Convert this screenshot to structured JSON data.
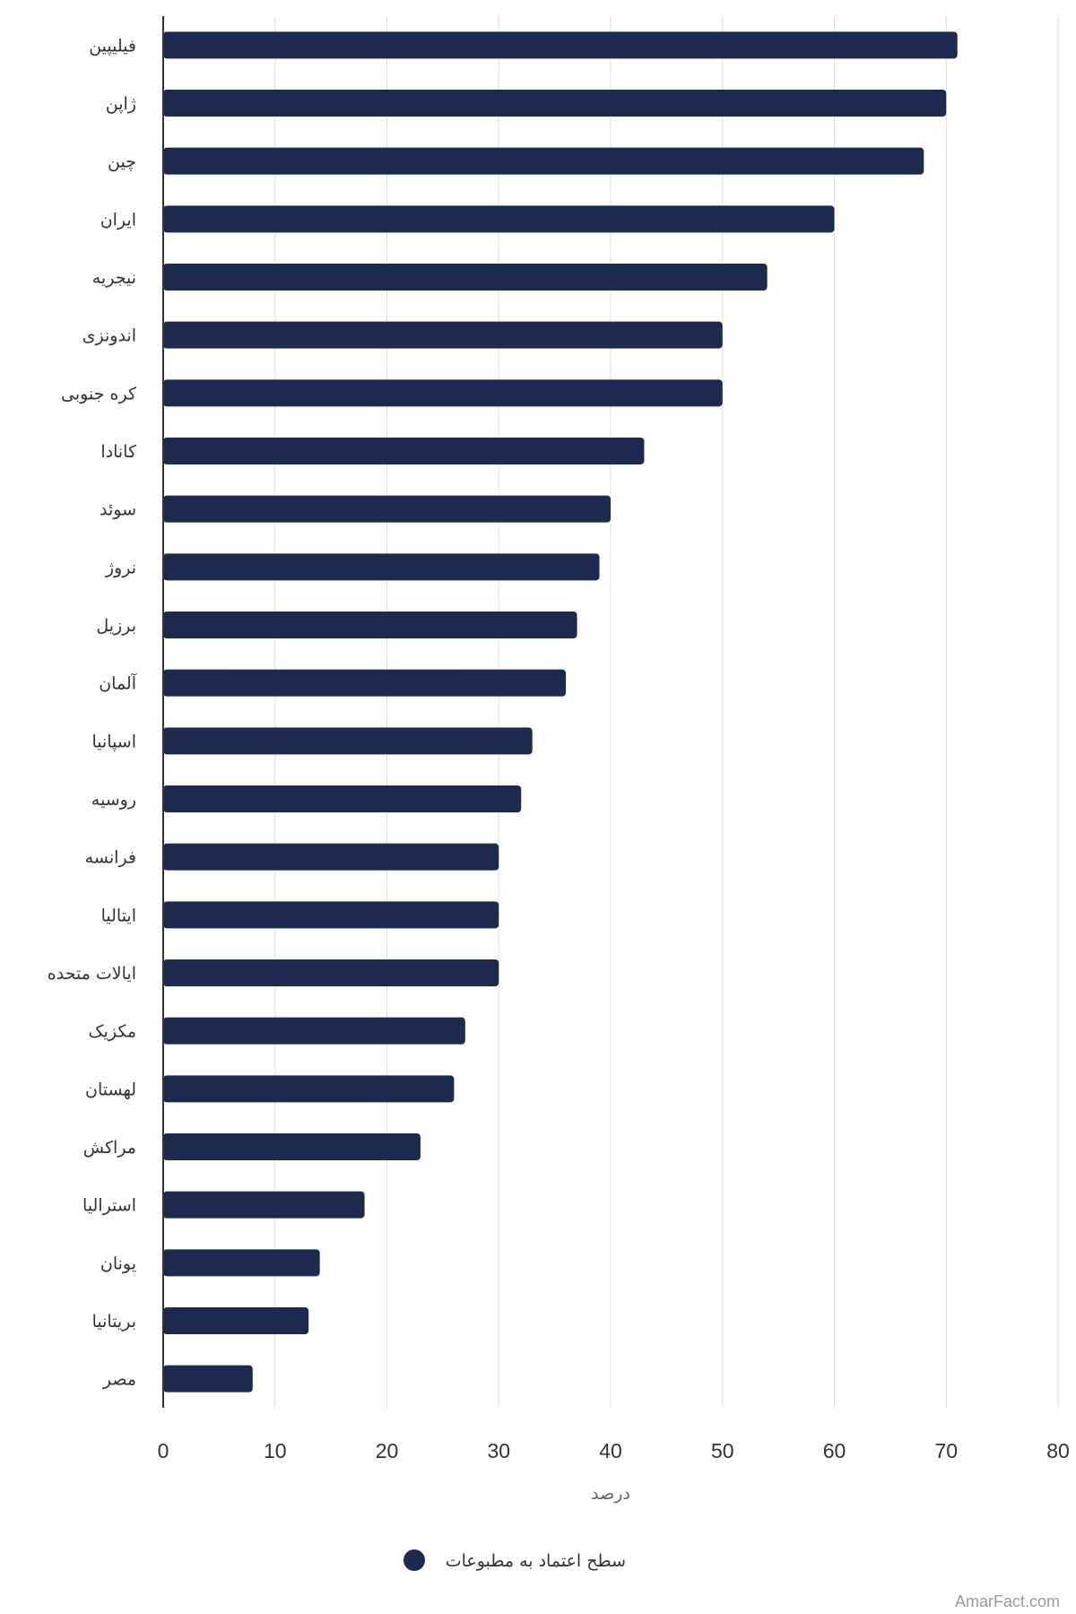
{
  "chart_data": {
    "type": "bar",
    "orientation": "horizontal",
    "categories": [
      "فیلیپین",
      "ژاپن",
      "چین",
      "ایران",
      "نیجریه",
      "اندونزی",
      "کره جنوبی",
      "کانادا",
      "سوئد",
      "نروژ",
      "برزیل",
      "آلمان",
      "اسپانیا",
      "روسیه",
      "فرانسه",
      "ایتالیا",
      "ایالات متحده",
      "مکزیک",
      "لهستان",
      "مراکش",
      "استرالیا",
      "یونان",
      "بریتانیا",
      "مصر"
    ],
    "series": [
      {
        "name": "سطح اعتماد به مطبوعات",
        "values": [
          71,
          70,
          68,
          60,
          54,
          50,
          50,
          43,
          40,
          39,
          37,
          36,
          33,
          32,
          30,
          30,
          30,
          27,
          26,
          23,
          18,
          14,
          13,
          8
        ]
      }
    ],
    "xlabel": "درصد",
    "xlim": [
      0,
      80
    ],
    "xticks": [
      0,
      10,
      20,
      30,
      40,
      50,
      60,
      70,
      80
    ],
    "grid": "vertical",
    "legend_position": "bottom-center"
  },
  "colors": {
    "bar": "#1b2a4e",
    "grid": "#e0e0e0",
    "axis": "#333333"
  },
  "credit": "AmarFact.com"
}
